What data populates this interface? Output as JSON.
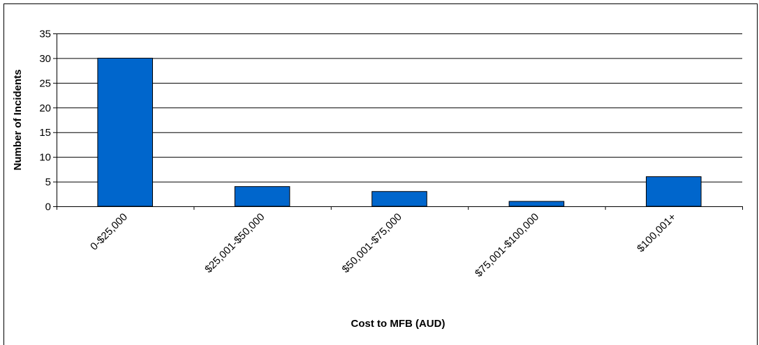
{
  "chart_data": {
    "type": "bar",
    "title": "",
    "xlabel": "Cost to MFB (AUD)",
    "ylabel": "Number of Incidents",
    "categories": [
      "0-$25,000",
      "$25,001-$50,000",
      "$50,001-$75,000",
      "$75,001-$100,000",
      "$100,001+"
    ],
    "values": [
      30,
      4,
      3,
      1,
      6
    ],
    "ylim": [
      0,
      35
    ],
    "yticks": [
      0,
      5,
      10,
      15,
      20,
      25,
      30,
      35
    ],
    "grid": true,
    "legend": "none",
    "colors": {
      "bar": "#0066CC",
      "bar_stroke": "#000000",
      "grid": "#000000"
    }
  }
}
